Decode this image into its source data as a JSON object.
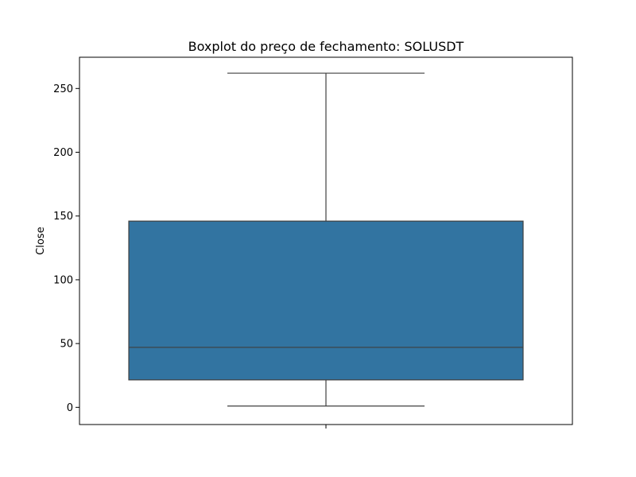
{
  "chart_data": {
    "type": "box",
    "title": "Boxplot do preço de fechamento: SOLUSDT",
    "xlabel": "",
    "ylabel": "Close",
    "ylim": [
      -13.5,
      274.5
    ],
    "y_ticks": [
      0,
      50,
      100,
      150,
      200,
      250
    ],
    "x_ticks": [
      ""
    ],
    "grid": false,
    "series": [
      {
        "whisker_low": 1,
        "q1": 21.5,
        "median": 47,
        "q3": 146,
        "whisker_high": 262
      }
    ],
    "colors": {
      "box_fill": "#3274a1",
      "line": "#3f3f3f",
      "axis": "#000000"
    }
  }
}
